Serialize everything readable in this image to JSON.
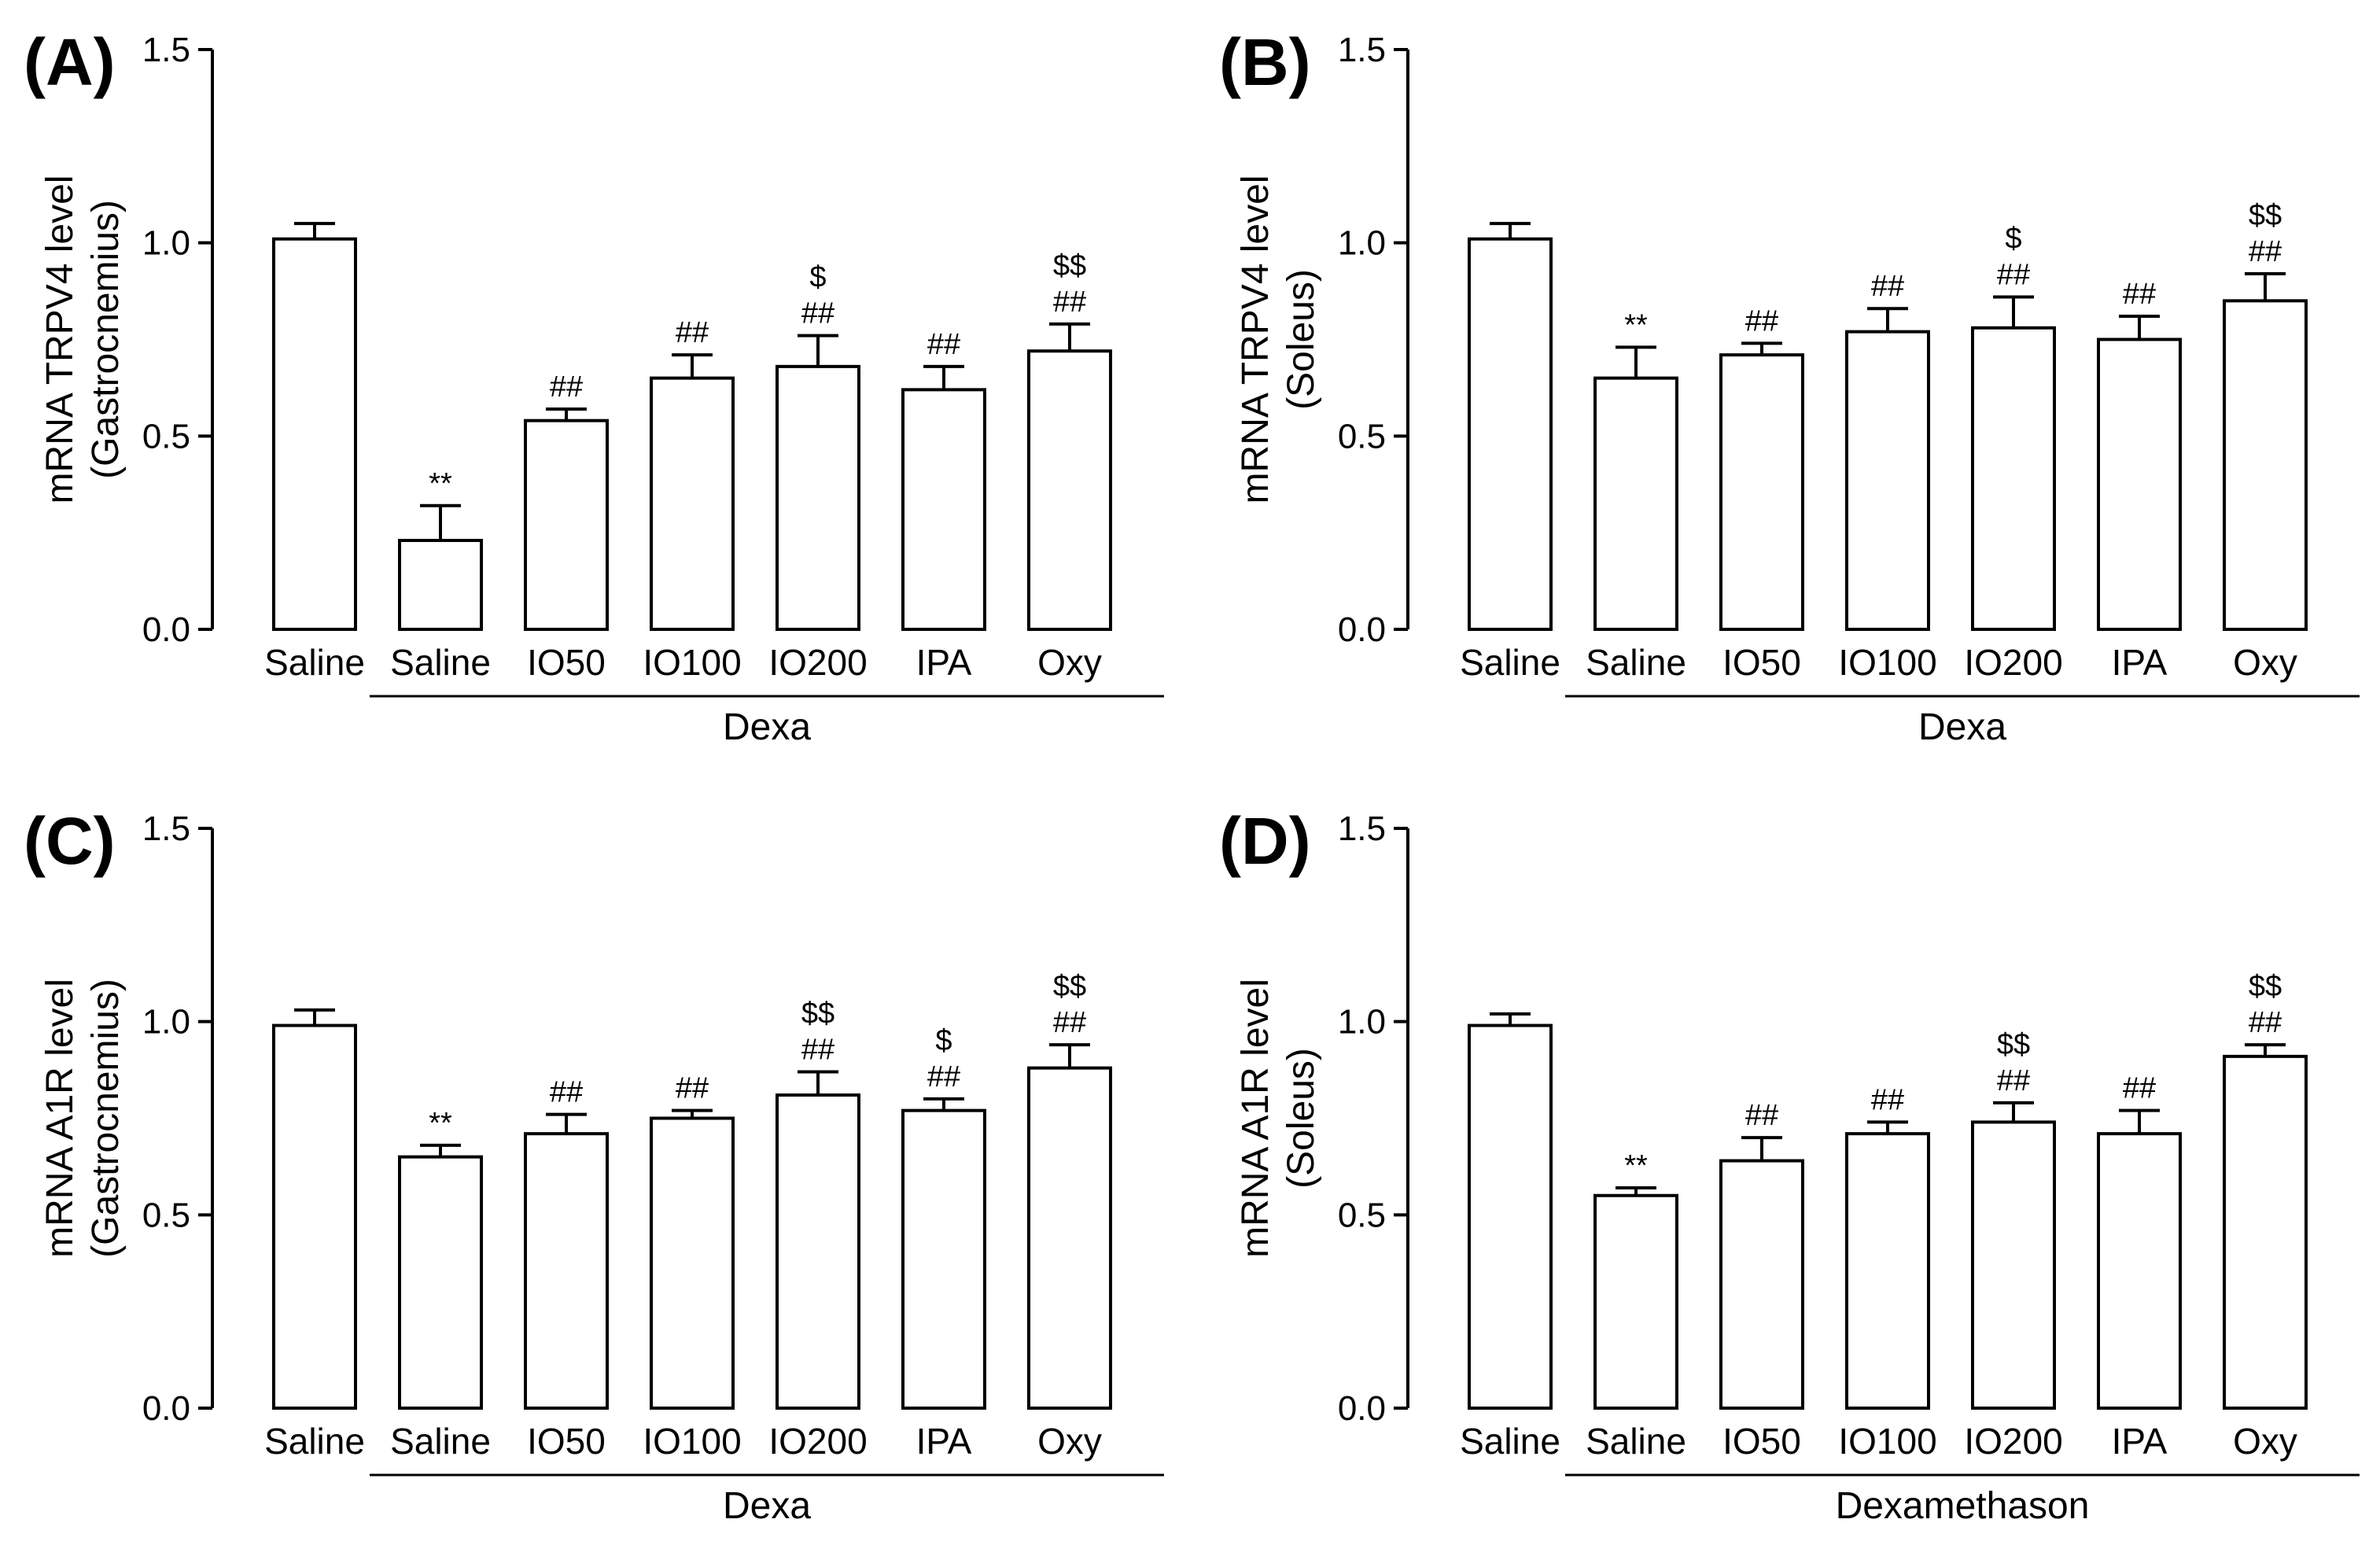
{
  "figure": {
    "background": "#ffffff",
    "bar_fill": "#ffffff",
    "stroke": "#000000"
  },
  "chart_data": [
    {
      "type": "bar",
      "panel_label": "(A)",
      "ylabel": "mRNA TRPV4 level",
      "ylabel_sub": "(Gastrocnemius)",
      "ylim": [
        0,
        1.5
      ],
      "yticks": [
        "0.0",
        "0.5",
        "1.0",
        "1.5"
      ],
      "categories": [
        "Saline",
        "Saline",
        "IO50",
        "IO100",
        "IO200",
        "IPA",
        "Oxy"
      ],
      "values": [
        1.01,
        0.23,
        0.54,
        0.65,
        0.68,
        0.62,
        0.72
      ],
      "errors": [
        0.04,
        0.09,
        0.03,
        0.06,
        0.08,
        0.06,
        0.07
      ],
      "significance": [
        [],
        [
          "**"
        ],
        [
          "##"
        ],
        [
          "##"
        ],
        [
          "$",
          "##"
        ],
        [
          "##"
        ],
        [
          "$$",
          "##"
        ]
      ],
      "group_label": "Dexa",
      "group_span": [
        1,
        6
      ]
    },
    {
      "type": "bar",
      "panel_label": "(B)",
      "ylabel": "mRNA TRPV4 level",
      "ylabel_sub": "(Soleus)",
      "ylim": [
        0,
        1.5
      ],
      "yticks": [
        "0.0",
        "0.5",
        "1.0",
        "1.5"
      ],
      "categories": [
        "Saline",
        "Saline",
        "IO50",
        "IO100",
        "IO200",
        "IPA",
        "Oxy"
      ],
      "values": [
        1.01,
        0.65,
        0.71,
        0.77,
        0.78,
        0.75,
        0.85
      ],
      "errors": [
        0.04,
        0.08,
        0.03,
        0.06,
        0.08,
        0.06,
        0.07
      ],
      "significance": [
        [],
        [
          "**"
        ],
        [
          "##"
        ],
        [
          "##"
        ],
        [
          "$",
          "##"
        ],
        [
          "##"
        ],
        [
          "$$",
          "##"
        ]
      ],
      "group_label": "Dexa",
      "group_span": [
        1,
        6
      ]
    },
    {
      "type": "bar",
      "panel_label": "(C)",
      "ylabel": "mRNA A1R level",
      "ylabel_sub": "(Gastrocnemius)",
      "ylim": [
        0,
        1.5
      ],
      "yticks": [
        "0.0",
        "0.5",
        "1.0",
        "1.5"
      ],
      "categories": [
        "Saline",
        "Saline",
        "IO50",
        "IO100",
        "IO200",
        "IPA",
        "Oxy"
      ],
      "values": [
        0.99,
        0.65,
        0.71,
        0.75,
        0.81,
        0.77,
        0.88
      ],
      "errors": [
        0.04,
        0.03,
        0.05,
        0.02,
        0.06,
        0.03,
        0.06
      ],
      "significance": [
        [],
        [
          "**"
        ],
        [
          "##"
        ],
        [
          "##"
        ],
        [
          "$$",
          "##"
        ],
        [
          "$",
          "##"
        ],
        [
          "$$",
          "##"
        ]
      ],
      "group_label": "Dexa",
      "group_span": [
        1,
        6
      ]
    },
    {
      "type": "bar",
      "panel_label": "(D)",
      "ylabel": "mRNA A1R level",
      "ylabel_sub": "(Soleus)",
      "ylim": [
        0,
        1.5
      ],
      "yticks": [
        "0.0",
        "0.5",
        "1.0",
        "1.5"
      ],
      "categories": [
        "Saline",
        "Saline",
        "IO50",
        "IO100",
        "IO200",
        "IPA",
        "Oxy"
      ],
      "values": [
        0.99,
        0.55,
        0.64,
        0.71,
        0.74,
        0.71,
        0.91
      ],
      "errors": [
        0.03,
        0.02,
        0.06,
        0.03,
        0.05,
        0.06,
        0.03
      ],
      "significance": [
        [],
        [
          "**"
        ],
        [
          "##"
        ],
        [
          "##"
        ],
        [
          "$$",
          "##"
        ],
        [
          "##"
        ],
        [
          "$$",
          "##"
        ]
      ],
      "group_label": "Dexamethason",
      "group_span": [
        1,
        6
      ]
    }
  ]
}
